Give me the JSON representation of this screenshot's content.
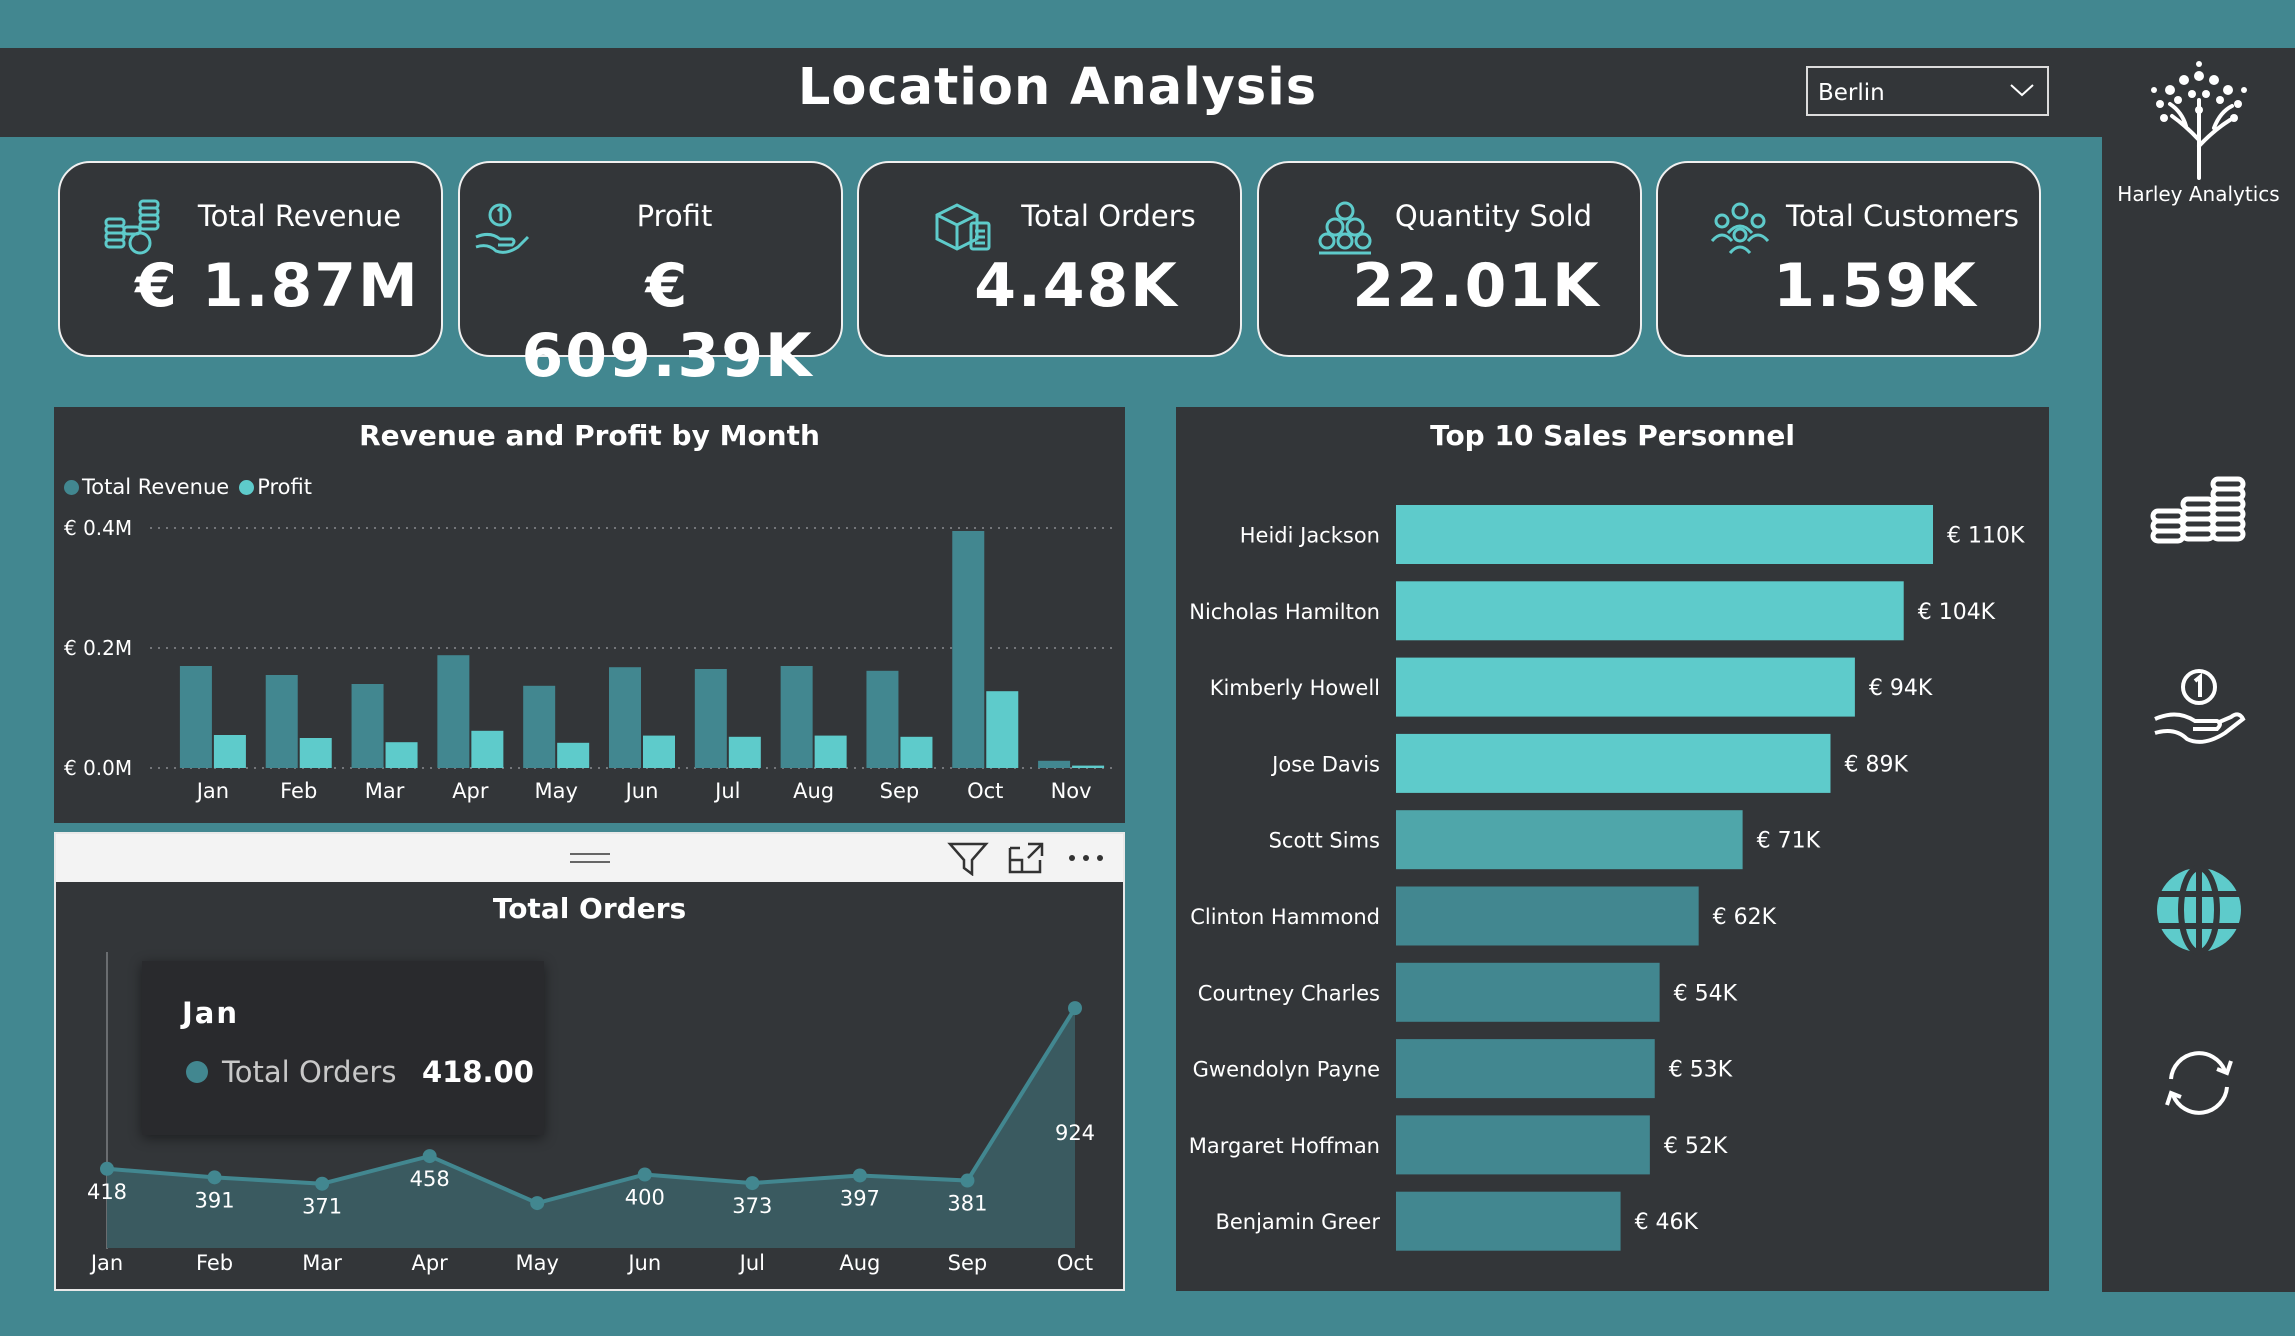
{
  "header": {
    "title": "Location Analysis",
    "location_filter": "Berlin"
  },
  "brand": {
    "name": "Harley Analytics"
  },
  "colors": {
    "background": "#428790",
    "panel": "#333639",
    "revenue": "#428790",
    "profit": "#5ecbcb",
    "accent": "#5ecbcb"
  },
  "kpis": [
    {
      "label": "Total Revenue",
      "value": "€ 1.87M",
      "icon": "coins-icon"
    },
    {
      "label": "Profit",
      "value": "€ 609.39K",
      "icon": "hand-coin-icon"
    },
    {
      "label": "Total Orders",
      "value": "4.48K",
      "icon": "boxes-icon"
    },
    {
      "label": "Quantity Sold",
      "value": "22.01K",
      "icon": "stacked-items-icon"
    },
    {
      "label": "Total Customers",
      "value": "1.59K",
      "icon": "people-icon"
    }
  ],
  "nav": [
    {
      "icon": "coins-icon",
      "active": false
    },
    {
      "icon": "hand-coin-icon",
      "active": false
    },
    {
      "icon": "globe-icon",
      "active": true
    },
    {
      "icon": "refresh-icon",
      "active": false
    }
  ],
  "tooltip": {
    "title": "Jan",
    "label": "Total Orders",
    "value": "418.00"
  },
  "chart_data": [
    {
      "type": "bar",
      "title": "Revenue and Profit by Month",
      "categories": [
        "Jan",
        "Feb",
        "Mar",
        "Apr",
        "May",
        "Jun",
        "Jul",
        "Aug",
        "Sep",
        "Oct",
        "Nov"
      ],
      "series": [
        {
          "name": "Total Revenue",
          "color": "#428790",
          "values": [
            170000,
            155000,
            140000,
            188000,
            137000,
            168000,
            165000,
            170000,
            162000,
            395000,
            12000
          ]
        },
        {
          "name": "Profit",
          "color": "#5ecbcb",
          "values": [
            55000,
            50000,
            43000,
            62000,
            42000,
            54000,
            52000,
            54000,
            52000,
            128000,
            4000
          ]
        }
      ],
      "y_ticks": [
        "€ 0.0M",
        "€ 0.2M",
        "€ 0.4M"
      ],
      "ylim": [
        0,
        400000
      ],
      "legend_position": "top-left",
      "grid": true
    },
    {
      "type": "area",
      "title": "Total Orders",
      "x": [
        "Jan",
        "Feb",
        "Mar",
        "Apr",
        "May",
        "Jun",
        "Jul",
        "Aug",
        "Sep",
        "Oct"
      ],
      "series": [
        {
          "name": "Total Orders",
          "color": "#428790",
          "values": [
            418,
            391,
            371,
            458,
            310,
            400,
            373,
            397,
            381,
            924
          ]
        }
      ],
      "labels": [
        "418",
        "391",
        "371",
        "458",
        "",
        "400",
        "373",
        "397",
        "381",
        "924"
      ],
      "ylim": [
        200,
        1000
      ]
    },
    {
      "type": "bar",
      "orientation": "horizontal",
      "title": "Top 10 Sales Personnel",
      "categories": [
        "Heidi Jackson",
        "Nicholas Hamilton",
        "Kimberly Howell",
        "Jose Davis",
        "Scott Sims",
        "Clinton Hammond",
        "Courtney Charles",
        "Gwendolyn Payne",
        "Margaret Hoffman",
        "Benjamin Greer"
      ],
      "values": [
        110000,
        104000,
        94000,
        89000,
        71000,
        62000,
        54000,
        53000,
        52000,
        46000
      ],
      "labels": [
        "€ 110K",
        "€ 104K",
        "€ 94K",
        "€ 89K",
        "€ 71K",
        "€ 62K",
        "€ 54K",
        "€ 53K",
        "€ 52K",
        "€ 46K"
      ],
      "xlim": [
        0,
        110000
      ]
    }
  ]
}
